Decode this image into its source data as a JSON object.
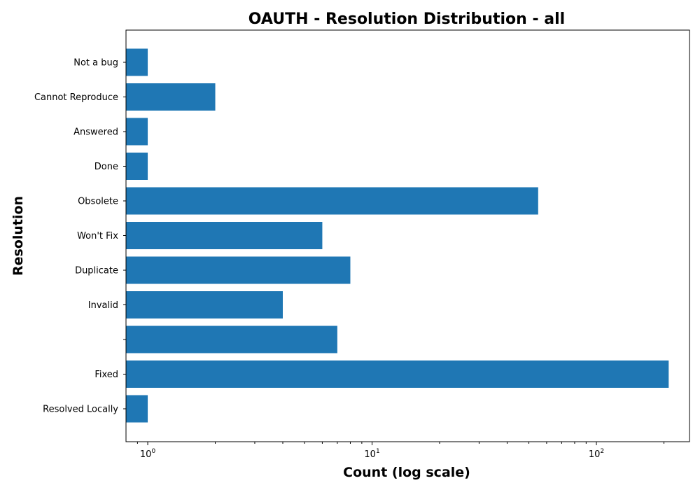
{
  "chart_data": {
    "type": "bar",
    "orientation": "horizontal",
    "title": "OAUTH - Resolution Distribution - all",
    "xlabel": "Count (log scale)",
    "ylabel": "Resolution",
    "x_scale": "log",
    "xlim": [
      0.8,
      260
    ],
    "x_ticks": [
      {
        "value": 1,
        "base": "10",
        "exp": "0"
      },
      {
        "value": 10,
        "base": "10",
        "exp": "1"
      },
      {
        "value": 100,
        "base": "10",
        "exp": "2"
      }
    ],
    "categories": [
      "Not a bug",
      "Cannot Reproduce",
      "Answered",
      "Done",
      "Obsolete",
      "Won't Fix",
      "Duplicate",
      "Invalid",
      "",
      "Fixed",
      "Resolved Locally"
    ],
    "values": [
      1,
      2,
      1,
      1,
      55,
      6,
      8,
      4,
      7,
      210,
      1
    ],
    "bar_color": "#1f77b4",
    "grid": false,
    "legend": "none"
  }
}
